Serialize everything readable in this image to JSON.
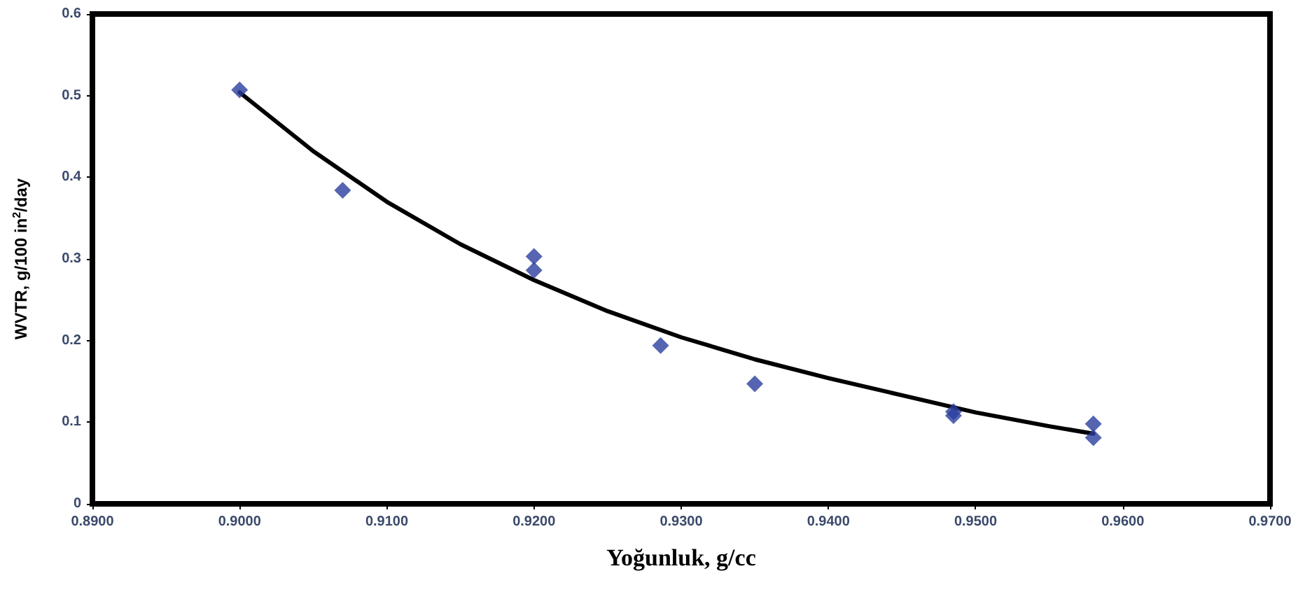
{
  "chart_data": {
    "type": "scatter",
    "xlabel": "Yoğunluk, g/cc",
    "ylabel": "WVTR, g/100 in$^{2}$/day",
    "xlim": [
      0.89,
      0.97
    ],
    "xticks": [
      {
        "value": 0.89,
        "label": "0.8900"
      },
      {
        "value": 0.9,
        "label": "0.9000"
      },
      {
        "value": 0.91,
        "label": "0.9100"
      },
      {
        "value": 0.92,
        "label": "0.9200"
      },
      {
        "value": 0.93,
        "label": "0.9300"
      },
      {
        "value": 0.94,
        "label": "0.9400"
      },
      {
        "value": 0.95,
        "label": "0.9500"
      },
      {
        "value": 0.96,
        "label": "0.9600"
      },
      {
        "value": 0.97,
        "label": "0.9700"
      }
    ],
    "ylim": [
      0,
      0.6
    ],
    "yticks": [
      0,
      0.1,
      0.2,
      0.3,
      0.4,
      0.5,
      0.6
    ],
    "grid": false,
    "marker": "diamond",
    "series": [
      {
        "color": "#2b3f9e",
        "x": [
          0.9,
          0.907,
          0.92,
          0.92,
          0.9286,
          0.935,
          0.9485,
          0.9485,
          0.958,
          0.958
        ],
        "values": [
          0.507,
          0.384,
          0.303,
          0.286,
          0.194,
          0.147,
          0.113,
          0.108,
          0.098,
          0.081
        ]
      },
      {
        "type": "line",
        "color": "#000000",
        "marker": "none",
        "line_style": "solid",
        "x": [
          0.9,
          0.905,
          0.91,
          0.915,
          0.92,
          0.925,
          0.93,
          0.935,
          0.94,
          0.945,
          0.95,
          0.955,
          0.958
        ],
        "values": [
          0.504,
          0.432,
          0.37,
          0.318,
          0.274,
          0.236,
          0.204,
          0.177,
          0.154,
          0.133,
          0.112,
          0.095,
          0.086
        ]
      }
    ]
  }
}
